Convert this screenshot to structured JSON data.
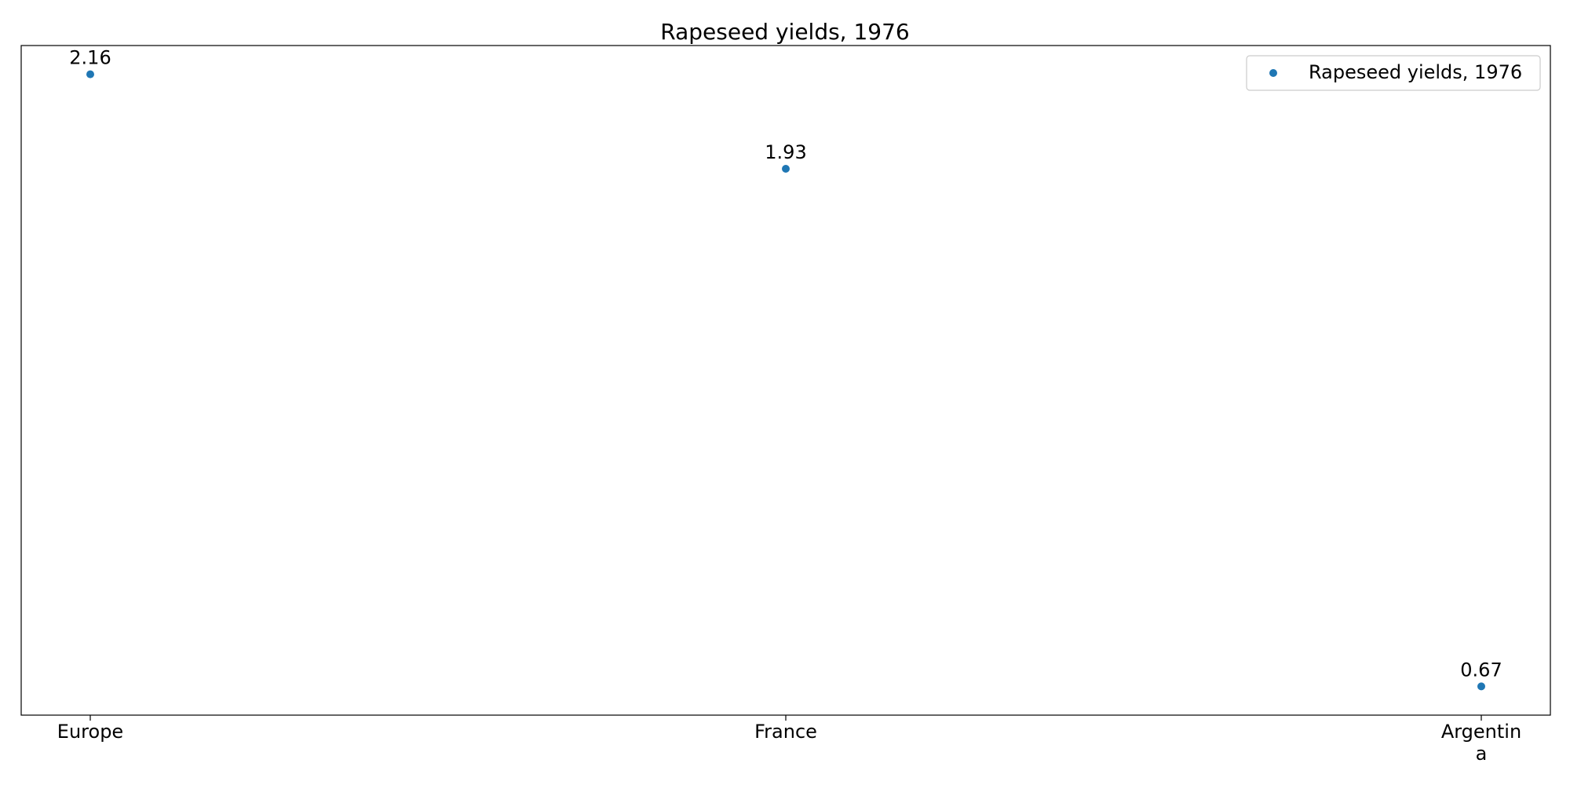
{
  "chart_data": {
    "type": "scatter",
    "title": "Rapeseed yields, 1976",
    "xlabel": "",
    "ylabel": "",
    "categories": [
      "Europe",
      "France",
      "Argentina"
    ],
    "category_tick_lines": [
      [
        "Europe"
      ],
      [
        "France"
      ],
      [
        "Argentin",
        "a"
      ]
    ],
    "series": [
      {
        "name": "Rapeseed yields, 1976",
        "values": [
          2.16,
          1.93,
          0.67
        ],
        "data_labels": [
          "2.16",
          "1.93",
          "0.67"
        ],
        "color": "#1f77b4"
      }
    ],
    "ylim": [
      0.6,
      2.23
    ],
    "grid": false,
    "legend_position": "top-right",
    "y_ticks_visible": false
  }
}
